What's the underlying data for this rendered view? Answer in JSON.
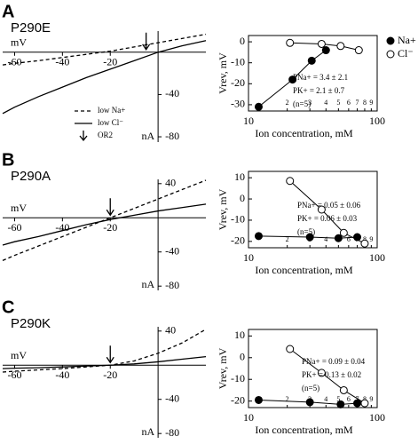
{
  "chart_data": [
    {
      "type": "line",
      "panel": "A",
      "title": "P290E",
      "xlabel": "mV",
      "ylabel": "nA",
      "xlim": [
        -65,
        20
      ],
      "ylim": [
        -85,
        20
      ],
      "xticks": [
        -60,
        -40,
        -20
      ],
      "yticks": [
        -40,
        -80
      ],
      "x": [
        -65,
        -60,
        -50,
        -40,
        -30,
        -20,
        -10,
        0,
        10,
        20
      ],
      "series": [
        {
          "name": "low Na+",
          "color": "#000000",
          "dash": true,
          "values": [
            -12,
            -10.5,
            -8,
            -5,
            -2,
            1,
            5,
            9,
            13,
            17
          ]
        },
        {
          "name": "low Cl⁻",
          "color": "#000000",
          "dash": false,
          "values": [
            -58,
            -52,
            -42,
            -33,
            -24,
            -16,
            -8,
            0,
            6,
            11
          ]
        }
      ],
      "marker_x": -5,
      "marker_label": "OR2"
    },
    {
      "type": "scatter",
      "xscale": "log",
      "ylabel": "Vrev, mV",
      "xlabel": "Ion  concentration, mM",
      "xlim": [
        10,
        100
      ],
      "ylim": [
        -33,
        3
      ],
      "xticks": [
        {
          "value": 10,
          "label": "10"
        },
        {
          "value": 20,
          "label": "2"
        },
        {
          "value": 30,
          "label": "3"
        },
        {
          "value": 40,
          "label": "4"
        },
        {
          "value": 50,
          "label": "5"
        },
        {
          "value": 60,
          "label": "6"
        },
        {
          "value": 70,
          "label": "7"
        },
        {
          "value": 80,
          "label": "8"
        },
        {
          "value": 90,
          "label": "9"
        },
        {
          "value": 100,
          "label": "100"
        }
      ],
      "yticks": [
        0,
        -10,
        -20,
        -30
      ],
      "series": [
        {
          "name": "Na+",
          "color": "#000000",
          "filled": true,
          "x": [
            12,
            22,
            31,
            40
          ],
          "values": [
            -31,
            -18,
            -9,
            -4
          ]
        },
        {
          "name": "Cl⁻",
          "color": "#000000",
          "filled": false,
          "x": [
            21,
            37,
            52,
            72
          ],
          "values": [
            -0.5,
            -1,
            -2,
            -4
          ]
        }
      ],
      "annotations": [
        "PNa+ = 3.4 ± 2.1",
        "PK+ = 2.1 ± 0.7",
        "(n=5)"
      ]
    },
    {
      "type": "line",
      "panel": "B",
      "title": "P290A",
      "xlabel": "mV",
      "ylabel": "nA",
      "xlim": [
        -65,
        20
      ],
      "ylim": [
        -85,
        45
      ],
      "xticks": [
        -60,
        -40,
        -20
      ],
      "yticks": [
        40,
        -40,
        -80
      ],
      "x": [
        -65,
        -60,
        -50,
        -40,
        -30,
        -20,
        -10,
        0,
        10,
        20
      ],
      "series": [
        {
          "color": "#000000",
          "dash": true,
          "values": [
            -50,
            -44,
            -33,
            -22,
            -11,
            0,
            11,
            22,
            33,
            44
          ]
        },
        {
          "color": "#000000",
          "dash": false,
          "values": [
            -32,
            -28,
            -22,
            -15,
            -8,
            -2,
            3,
            8,
            12,
            16
          ]
        }
      ],
      "marker_x": -20
    },
    {
      "type": "scatter",
      "xscale": "log",
      "ylabel": "Vrev, mV",
      "xlabel": "Ion  concentration, mM",
      "xlim": [
        10,
        100
      ],
      "ylim": [
        -23,
        13
      ],
      "xticks": [
        {
          "value": 10,
          "label": "10"
        },
        {
          "value": 20,
          "label": "2"
        },
        {
          "value": 30,
          "label": "3"
        },
        {
          "value": 40,
          "label": "4"
        },
        {
          "value": 50,
          "label": "5"
        },
        {
          "value": 60,
          "label": "6"
        },
        {
          "value": 70,
          "label": "7"
        },
        {
          "value": 80,
          "label": "8"
        },
        {
          "value": 90,
          "label": "9"
        },
        {
          "value": 100,
          "label": "100"
        }
      ],
      "yticks": [
        10,
        0,
        -10,
        -20
      ],
      "series": [
        {
          "filled": true,
          "color": "#000000",
          "x": [
            12,
            30,
            50,
            70
          ],
          "values": [
            -17.5,
            -18,
            -18.5,
            -18
          ]
        },
        {
          "filled": false,
          "color": "#000000",
          "x": [
            21,
            37,
            55,
            80
          ],
          "values": [
            8.5,
            -5,
            -16,
            -21
          ]
        }
      ],
      "annotations": [
        "PNa+ = 0.05 ± 0.06",
        "PK+ = 0.06 ± 0.03",
        "(n=5)"
      ]
    },
    {
      "type": "line",
      "panel": "C",
      "title": "P290K",
      "xlabel": "mV",
      "ylabel": "nA",
      "xlim": [
        -65,
        20
      ],
      "ylim": [
        -85,
        45
      ],
      "xticks": [
        -60,
        -40,
        -20
      ],
      "yticks": [
        40,
        -40,
        -80
      ],
      "x": [
        -65,
        -60,
        -50,
        -40,
        -30,
        -20,
        -10,
        0,
        10,
        20
      ],
      "series": [
        {
          "color": "#000000",
          "dash": true,
          "values": [
            -8,
            -7,
            -5.5,
            -4,
            -2,
            0,
            5,
            14,
            26,
            42
          ]
        },
        {
          "color": "#000000",
          "dash": false,
          "values": [
            -4,
            -3.5,
            -3,
            -2,
            -1,
            0,
            1.5,
            4,
            7,
            10
          ]
        }
      ],
      "marker_x": -20
    },
    {
      "type": "scatter",
      "xscale": "log",
      "ylabel": "Vrev, mV",
      "xlabel": "Ion  concentration, mM",
      "xlim": [
        10,
        100
      ],
      "ylim": [
        -23,
        13
      ],
      "xticks": [
        {
          "value": 10,
          "label": "10"
        },
        {
          "value": 20,
          "label": "2"
        },
        {
          "value": 30,
          "label": "3"
        },
        {
          "value": 40,
          "label": "4"
        },
        {
          "value": 50,
          "label": "5"
        },
        {
          "value": 60,
          "label": "6"
        },
        {
          "value": 70,
          "label": "7"
        },
        {
          "value": 80,
          "label": "8"
        },
        {
          "value": 90,
          "label": "9"
        },
        {
          "value": 100,
          "label": "100"
        }
      ],
      "yticks": [
        10,
        0,
        -10,
        -20
      ],
      "series": [
        {
          "filled": true,
          "color": "#000000",
          "x": [
            12,
            30,
            52,
            70
          ],
          "values": [
            -19.5,
            -20.5,
            -21.5,
            -21
          ]
        },
        {
          "filled": false,
          "color": "#000000",
          "x": [
            21,
            37,
            55,
            80
          ],
          "values": [
            4,
            -7,
            -15,
            -21
          ]
        }
      ],
      "annotations": [
        "PNa+ = 0.09 ± 0.04",
        "PK+ = 0.13 ± 0.02",
        "(n=5)"
      ]
    }
  ]
}
